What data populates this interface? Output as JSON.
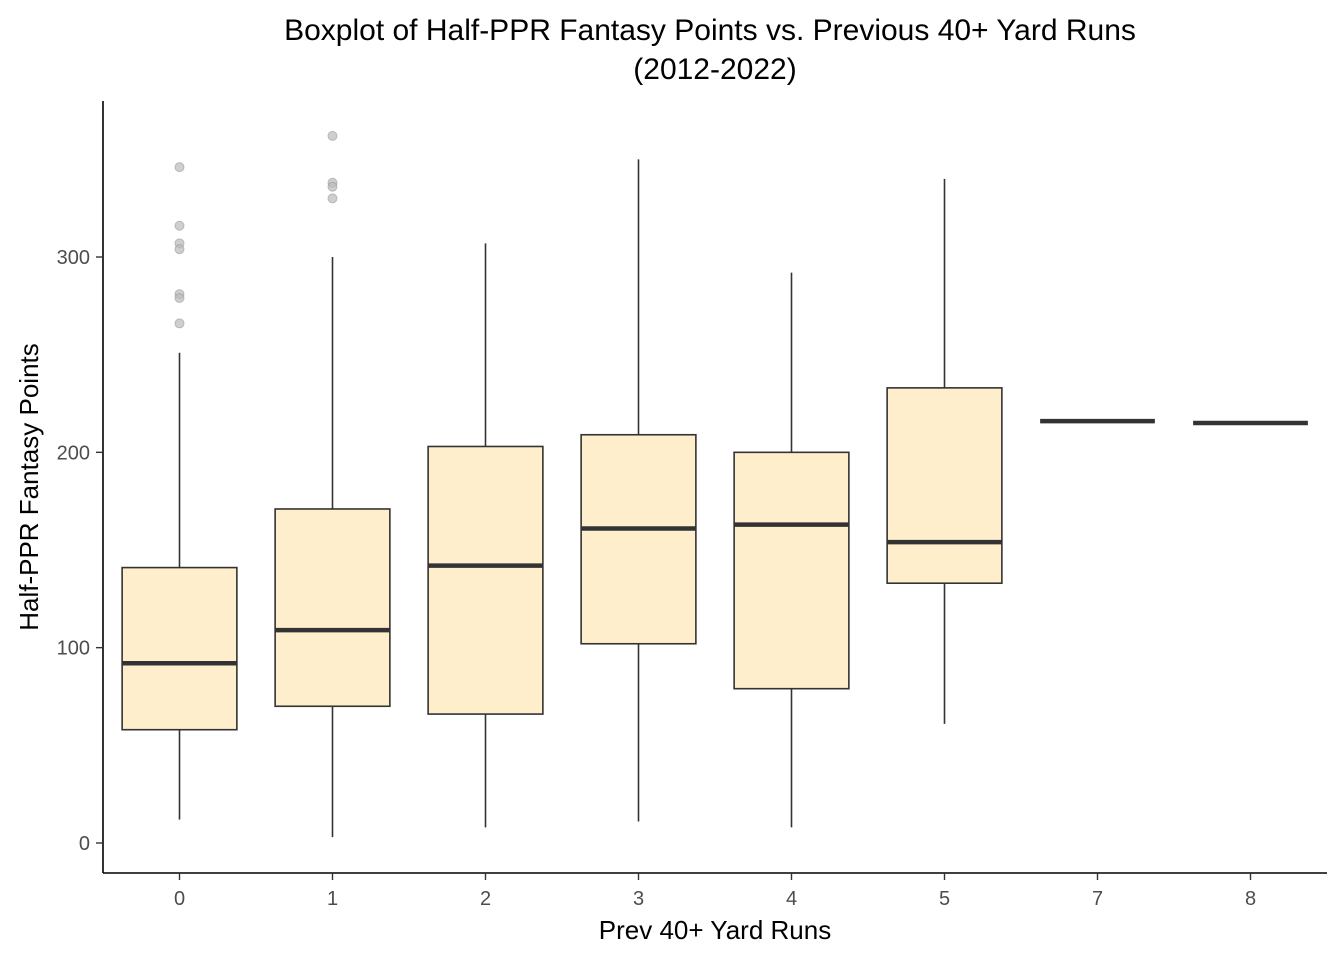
{
  "chart_data": {
    "type": "boxplot",
    "title": "Boxplot of Half-PPR Fantasy Points vs. Previous 40+ Yard Runs",
    "subtitle": "(2012-2022)",
    "xlabel": "Prev 40+ Yard Runs",
    "ylabel": "Half-PPR Fantasy Points",
    "categories": [
      "0",
      "1",
      "2",
      "3",
      "4",
      "5",
      "7",
      "8"
    ],
    "y_ticks": [
      0,
      100,
      200,
      300
    ],
    "y_tick_labels": [
      "0",
      "100",
      "200",
      "300"
    ],
    "ylim": [
      -16,
      380
    ],
    "grid": false,
    "box_fill": "#FFEECC",
    "box_stroke": "#333333",
    "outlier_color": "#BBBBBB",
    "boxes": [
      {
        "category": "0",
        "whisker_low": 12,
        "q1": 58,
        "median": 92,
        "q3": 141,
        "whisker_high": 251,
        "outliers": [
          346,
          316,
          307,
          304,
          281,
          279,
          266
        ]
      },
      {
        "category": "1",
        "whisker_low": 3,
        "q1": 70,
        "median": 109,
        "q3": 171,
        "whisker_high": 300,
        "outliers": [
          362,
          338,
          336,
          330
        ]
      },
      {
        "category": "2",
        "whisker_low": 8,
        "q1": 66,
        "median": 142,
        "q3": 203,
        "whisker_high": 307,
        "outliers": []
      },
      {
        "category": "3",
        "whisker_low": 11,
        "q1": 102,
        "median": 161,
        "q3": 209,
        "whisker_high": 350,
        "outliers": []
      },
      {
        "category": "4",
        "whisker_low": 8,
        "q1": 79,
        "median": 163,
        "q3": 200,
        "whisker_high": 292,
        "outliers": []
      },
      {
        "category": "5",
        "whisker_low": 61,
        "q1": 133,
        "median": 154,
        "q3": 233,
        "whisker_high": 340,
        "outliers": []
      },
      {
        "category": "7",
        "whisker_low": 216,
        "q1": 216,
        "median": 216,
        "q3": 216,
        "whisker_high": 216,
        "outliers": []
      },
      {
        "category": "8",
        "whisker_low": 215,
        "q1": 215,
        "median": 215,
        "q3": 215,
        "whisker_high": 215,
        "outliers": []
      }
    ]
  }
}
